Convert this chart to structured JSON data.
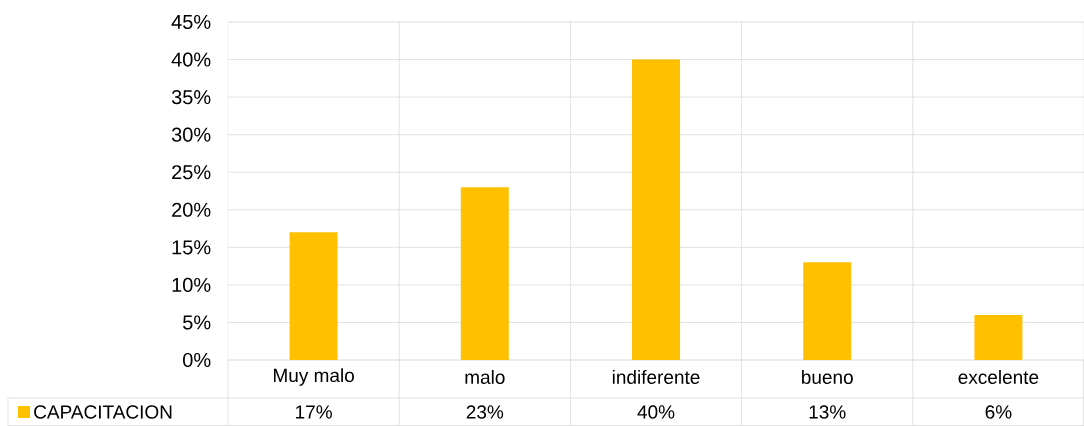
{
  "chart_data": {
    "type": "bar",
    "categories": [
      "Muy malo",
      "malo",
      "indiferente",
      "bueno",
      "excelente"
    ],
    "series": [
      {
        "name": "CAPACITACION",
        "color": "#ffc000",
        "values": [
          17,
          23,
          40,
          13,
          6
        ],
        "value_labels": [
          "17%",
          "23%",
          "40%",
          "13%",
          "6%"
        ]
      }
    ],
    "ylim": [
      0,
      45
    ],
    "yticks": [
      {
        "value": 0,
        "label": "0%"
      },
      {
        "value": 5,
        "label": "5%"
      },
      {
        "value": 10,
        "label": "10%"
      },
      {
        "value": 15,
        "label": "15%"
      },
      {
        "value": 20,
        "label": "20%"
      },
      {
        "value": 25,
        "label": "25%"
      },
      {
        "value": 30,
        "label": "30%"
      },
      {
        "value": 35,
        "label": "35%"
      },
      {
        "value": 40,
        "label": "40%"
      },
      {
        "value": 45,
        "label": "45%"
      }
    ],
    "grid": true,
    "legend": "bottom left"
  }
}
